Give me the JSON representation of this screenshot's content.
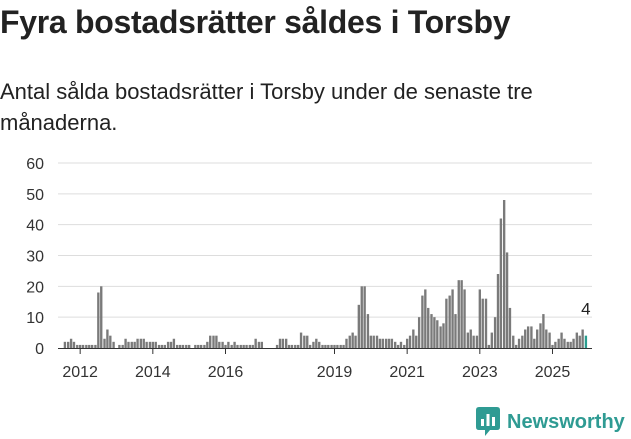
{
  "header": {
    "title": "Fyra bostadsrätter såldes i Torsby",
    "subtitle": "Antal sålda bostadsrätter i Torsby under de senaste tre månaderna."
  },
  "brand": {
    "name": "Newsworthy",
    "icon": "newsworthy-logo-icon",
    "color": "#2f9b93"
  },
  "chart_data": {
    "type": "bar",
    "title": "",
    "xlabel": "",
    "ylabel": "",
    "ylim": [
      0,
      60
    ],
    "yticks": [
      0,
      10,
      20,
      30,
      40,
      50,
      60
    ],
    "xlim": [
      2011.5,
      2025.95
    ],
    "xticks": [
      "2012",
      "2014",
      "2016",
      "2019",
      "2021",
      "2023",
      "2025"
    ],
    "grid": true,
    "bar_color": "#7a7a7a",
    "highlight_color": "#2a9d8f",
    "highlight_label": "4",
    "series": [
      {
        "values": [
          [
            2011.5,
            0
          ],
          [
            2011.58,
            2
          ],
          [
            2011.67,
            2
          ],
          [
            2011.75,
            3
          ],
          [
            2011.83,
            2
          ],
          [
            2011.92,
            1
          ],
          [
            2012.0,
            1
          ],
          [
            2012.08,
            1
          ],
          [
            2012.17,
            1
          ],
          [
            2012.25,
            1
          ],
          [
            2012.33,
            1
          ],
          [
            2012.42,
            1
          ],
          [
            2012.5,
            18
          ],
          [
            2012.58,
            20
          ],
          [
            2012.67,
            3
          ],
          [
            2012.75,
            6
          ],
          [
            2012.83,
            4
          ],
          [
            2012.92,
            2
          ],
          [
            2013.0,
            0
          ],
          [
            2013.08,
            1
          ],
          [
            2013.17,
            1
          ],
          [
            2013.25,
            3
          ],
          [
            2013.33,
            2
          ],
          [
            2013.42,
            2
          ],
          [
            2013.5,
            2
          ],
          [
            2013.58,
            3
          ],
          [
            2013.67,
            3
          ],
          [
            2013.75,
            3
          ],
          [
            2013.83,
            2
          ],
          [
            2013.92,
            2
          ],
          [
            2014.0,
            2
          ],
          [
            2014.08,
            2
          ],
          [
            2014.17,
            1
          ],
          [
            2014.25,
            1
          ],
          [
            2014.33,
            1
          ],
          [
            2014.42,
            2
          ],
          [
            2014.5,
            2
          ],
          [
            2014.58,
            3
          ],
          [
            2014.67,
            1
          ],
          [
            2014.75,
            1
          ],
          [
            2014.83,
            1
          ],
          [
            2014.92,
            1
          ],
          [
            2015.0,
            1
          ],
          [
            2015.08,
            0
          ],
          [
            2015.17,
            1
          ],
          [
            2015.25,
            1
          ],
          [
            2015.33,
            1
          ],
          [
            2015.42,
            1
          ],
          [
            2015.5,
            2
          ],
          [
            2015.58,
            4
          ],
          [
            2015.67,
            4
          ],
          [
            2015.75,
            4
          ],
          [
            2015.83,
            2
          ],
          [
            2015.92,
            2
          ],
          [
            2016.0,
            1
          ],
          [
            2016.08,
            2
          ],
          [
            2016.17,
            1
          ],
          [
            2016.25,
            2
          ],
          [
            2016.33,
            1
          ],
          [
            2016.42,
            1
          ],
          [
            2016.5,
            1
          ],
          [
            2016.58,
            1
          ],
          [
            2016.67,
            1
          ],
          [
            2016.75,
            1
          ],
          [
            2016.83,
            3
          ],
          [
            2016.92,
            2
          ],
          [
            2017.0,
            2
          ],
          [
            2017.08,
            0
          ],
          [
            2017.17,
            0
          ],
          [
            2017.25,
            0
          ],
          [
            2017.33,
            0
          ],
          [
            2017.42,
            1
          ],
          [
            2017.5,
            3
          ],
          [
            2017.58,
            3
          ],
          [
            2017.67,
            3
          ],
          [
            2017.75,
            1
          ],
          [
            2017.83,
            1
          ],
          [
            2017.92,
            1
          ],
          [
            2018.0,
            1
          ],
          [
            2018.08,
            5
          ],
          [
            2018.17,
            4
          ],
          [
            2018.25,
            4
          ],
          [
            2018.33,
            1
          ],
          [
            2018.42,
            2
          ],
          [
            2018.5,
            3
          ],
          [
            2018.58,
            2
          ],
          [
            2018.67,
            1
          ],
          [
            2018.75,
            1
          ],
          [
            2018.83,
            1
          ],
          [
            2018.92,
            1
          ],
          [
            2019.0,
            1
          ],
          [
            2019.08,
            1
          ],
          [
            2019.17,
            1
          ],
          [
            2019.25,
            1
          ],
          [
            2019.33,
            3
          ],
          [
            2019.42,
            4
          ],
          [
            2019.5,
            5
          ],
          [
            2019.58,
            4
          ],
          [
            2019.67,
            14
          ],
          [
            2019.75,
            20
          ],
          [
            2019.83,
            20
          ],
          [
            2019.92,
            11
          ],
          [
            2020.0,
            4
          ],
          [
            2020.08,
            4
          ],
          [
            2020.17,
            4
          ],
          [
            2020.25,
            3
          ],
          [
            2020.33,
            3
          ],
          [
            2020.42,
            3
          ],
          [
            2020.5,
            3
          ],
          [
            2020.58,
            3
          ],
          [
            2020.67,
            2
          ],
          [
            2020.75,
            1
          ],
          [
            2020.83,
            2
          ],
          [
            2020.92,
            1
          ],
          [
            2021.0,
            3
          ],
          [
            2021.08,
            4
          ],
          [
            2021.17,
            6
          ],
          [
            2021.25,
            4
          ],
          [
            2021.33,
            10
          ],
          [
            2021.42,
            17
          ],
          [
            2021.5,
            19
          ],
          [
            2021.58,
            13
          ],
          [
            2021.67,
            11
          ],
          [
            2021.75,
            10
          ],
          [
            2021.83,
            9
          ],
          [
            2021.92,
            7
          ],
          [
            2022.0,
            8
          ],
          [
            2022.08,
            16
          ],
          [
            2022.17,
            17
          ],
          [
            2022.25,
            19
          ],
          [
            2022.33,
            11
          ],
          [
            2022.42,
            22
          ],
          [
            2022.5,
            22
          ],
          [
            2022.58,
            19
          ],
          [
            2022.67,
            5
          ],
          [
            2022.75,
            6
          ],
          [
            2022.83,
            4
          ],
          [
            2022.92,
            4
          ],
          [
            2023.0,
            19
          ],
          [
            2023.08,
            16
          ],
          [
            2023.17,
            16
          ],
          [
            2023.25,
            1
          ],
          [
            2023.33,
            5
          ],
          [
            2023.42,
            10
          ],
          [
            2023.5,
            24
          ],
          [
            2023.58,
            42
          ],
          [
            2023.67,
            48
          ],
          [
            2023.75,
            31
          ],
          [
            2023.83,
            13
          ],
          [
            2023.92,
            4
          ],
          [
            2024.0,
            1
          ],
          [
            2024.08,
            3
          ],
          [
            2024.17,
            4
          ],
          [
            2024.25,
            6
          ],
          [
            2024.33,
            7
          ],
          [
            2024.42,
            7
          ],
          [
            2024.5,
            3
          ],
          [
            2024.58,
            6
          ],
          [
            2024.67,
            8
          ],
          [
            2024.75,
            11
          ],
          [
            2024.83,
            6
          ],
          [
            2024.92,
            5
          ],
          [
            2025.0,
            1
          ],
          [
            2025.08,
            2
          ],
          [
            2025.17,
            3
          ],
          [
            2025.25,
            5
          ],
          [
            2025.33,
            3
          ],
          [
            2025.42,
            2
          ],
          [
            2025.5,
            2
          ],
          [
            2025.58,
            3
          ],
          [
            2025.67,
            5
          ],
          [
            2025.75,
            4
          ],
          [
            2025.83,
            6
          ],
          [
            2025.92,
            4
          ]
        ]
      }
    ]
  }
}
